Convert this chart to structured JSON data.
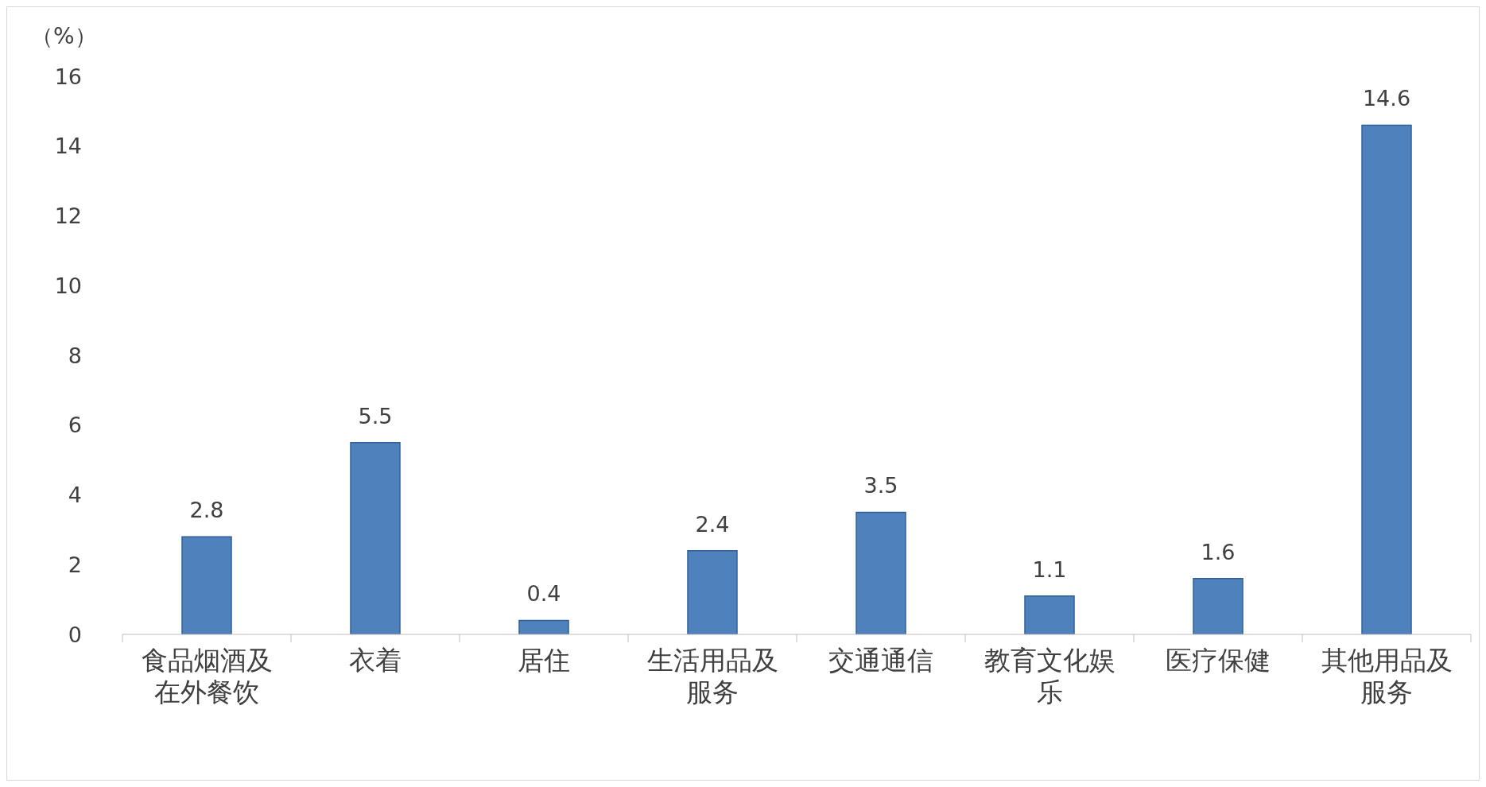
{
  "chart_data": {
    "type": "bar",
    "ylabel": "（%）",
    "categories": [
      "食品烟酒及在外餐饮",
      "衣着",
      "居住",
      "生活用品及服务",
      "交通通信",
      "教育文化娱乐",
      "医疗保健",
      "其他用品及服务"
    ],
    "values": [
      2.8,
      5.5,
      0.4,
      2.4,
      3.5,
      1.1,
      1.6,
      14.6
    ],
    "color": "#4f81bd",
    "ylim": [
      0,
      16
    ],
    "yticks": [
      0,
      2,
      4,
      6,
      8,
      10,
      12,
      14,
      16
    ],
    "data_labels": true
  }
}
